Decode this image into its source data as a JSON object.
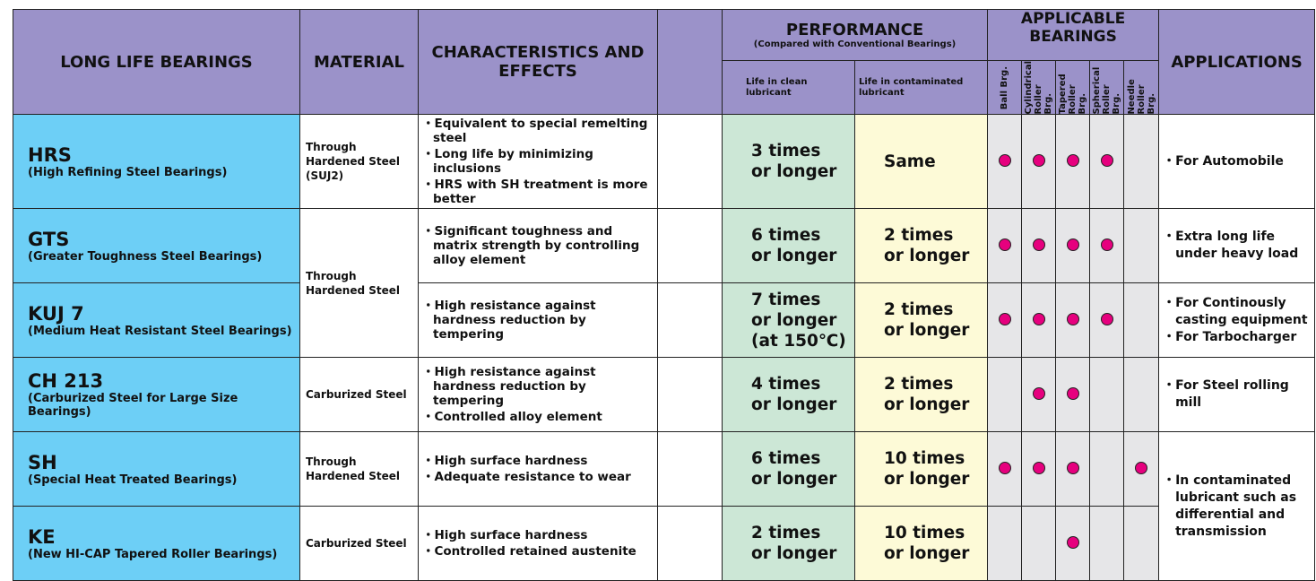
{
  "header": {
    "col1": "LONG LIFE BEARINGS",
    "col2": "MATERIAL",
    "col3": "CHARACTERISTICS AND EFFECTS",
    "perf": "PERFORMANCE",
    "perf_sub": "(Compared with Conventional Bearings)",
    "clean": "Life in clean lubricant",
    "contam": "Life in contaminated lubricant",
    "applicable": "APPLICABLE BEARINGS",
    "bearings": [
      "Ball Brg.",
      "Cylindrical Roller Brg.",
      "Tapered Roller Brg.",
      "Spherical Roller Brg.",
      "Needle Roller Brg."
    ],
    "applications": "APPLICATIONS"
  },
  "rows": [
    {
      "name": "HRS",
      "desc": "(High Refining Steel Bearings)",
      "material": "Through Hardened Steel (SUJ2)",
      "chars": [
        "Equivalent to special remelting steel",
        "Long life by minimizing inclusions",
        "HRS with SH  treatment is more better"
      ],
      "clean": "3 times or longer",
      "contam": "Same",
      "dots": [
        1,
        1,
        1,
        1,
        0
      ],
      "apps": [
        "For Automobile"
      ]
    },
    {
      "name": "GTS",
      "desc": "(Greater Toughness Steel Bearings)",
      "material": "Through Hardened Steel",
      "chars": [
        "Significant toughness and matrix strength by controlling alloy element"
      ],
      "clean": "6 times or longer",
      "contam": "2 times or longer",
      "dots": [
        1,
        1,
        1,
        1,
        0
      ],
      "apps": [
        "Extra long life under heavy load"
      ]
    },
    {
      "name": "KUJ 7",
      "desc": "(Medium Heat Resistant Steel Bearings)",
      "chars": [
        "High resistance against hardness reduction by tempering"
      ],
      "clean": "7 times or longer (at 150℃)",
      "contam": "2 times or longer",
      "dots": [
        1,
        1,
        1,
        1,
        0
      ],
      "apps": [
        "For Continously casting equipment",
        "For Tarbocharger"
      ]
    },
    {
      "name": "CH 213",
      "desc": "(Carburized Steel for Large Size Bearings)",
      "material": "Carburized Steel",
      "chars": [
        "High resistance against hardness reduction by tempering",
        "Controlled alloy element"
      ],
      "clean": "4 times or longer",
      "contam": "2 times or longer",
      "dots": [
        0,
        1,
        1,
        0,
        0
      ],
      "apps": [
        "For Steel rolling mill"
      ]
    },
    {
      "name": "SH",
      "desc": "(Special Heat Treated Bearings)",
      "material": "Through Hardened Steel",
      "chars": [
        "High surface hardness",
        "Adequate resistance to wear"
      ],
      "clean": "6 times or longer",
      "contam": "10 times or longer",
      "dots": [
        1,
        1,
        1,
        0,
        1
      ],
      "apps": [
        "In contaminated lubricant such as differential and transmission"
      ]
    },
    {
      "name": "KE",
      "desc": "(New HI-CAP Tapered Roller Bearings)",
      "material": "Carburized Steel",
      "chars": [
        "High surface hardness",
        "Controlled retained austenite"
      ],
      "clean": "2 times or longer",
      "contam": "10 times or longer",
      "dots": [
        0,
        0,
        1,
        0,
        0
      ]
    }
  ],
  "colors": {
    "header": "#9b92c9",
    "name": "#6dcff6",
    "clean": "#cce7d6",
    "contam": "#fdfad7",
    "dot": "#e6007e"
  }
}
